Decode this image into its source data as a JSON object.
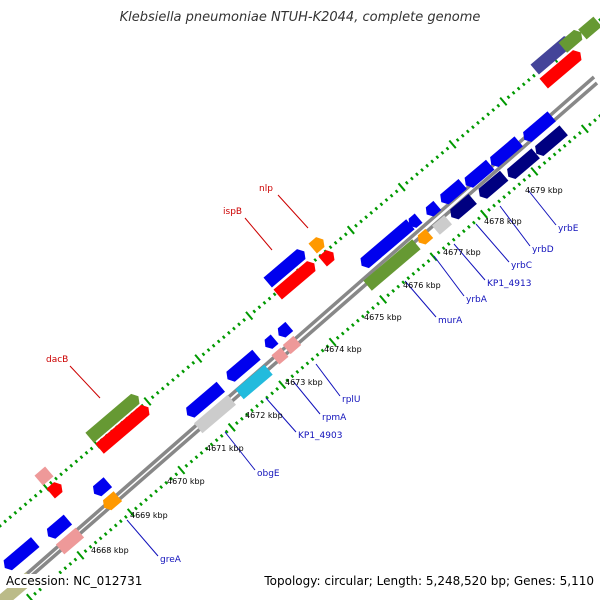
{
  "title": "Klebsiella pneumoniae NTUH-K2044, complete genome",
  "footer": {
    "accession": "Accession: NC_012731",
    "summary": "Topology: circular; Length: 5,248,520 bp; Genes: 5,110"
  },
  "colors": {
    "backbone": "#888888",
    "tick": "#009900",
    "dark_green": "#669933",
    "red": "#ff0000",
    "blue": "#0000ee",
    "orange": "#ff9900",
    "navy": "#000080",
    "pink": "#ee9999",
    "cyan": "#22bbdd",
    "gray": "#cccccc",
    "slate": "#444499",
    "khaki": "#bbbb88",
    "fwd_label": "#cc0000",
    "rev_label": "#1111bb"
  },
  "kbp_labels": [
    "4668 kbp",
    "4669 kbp",
    "4670 kbp",
    "4671 kbp",
    "4672 kbp",
    "4673 kbp",
    "4674 kbp",
    "4675 kbp",
    "4676 kbp",
    "4677 kbp",
    "4678 kbp",
    "4679 kbp"
  ],
  "forward_genes": [
    "dacB",
    "ispB",
    "nlp"
  ],
  "reverse_genes": [
    "greA",
    "obgE",
    "KP1_4903",
    "rpmA",
    "rplU",
    "murA",
    "yrbA",
    "KP1_4913",
    "yrbC",
    "yrbD",
    "yrbE"
  ]
}
